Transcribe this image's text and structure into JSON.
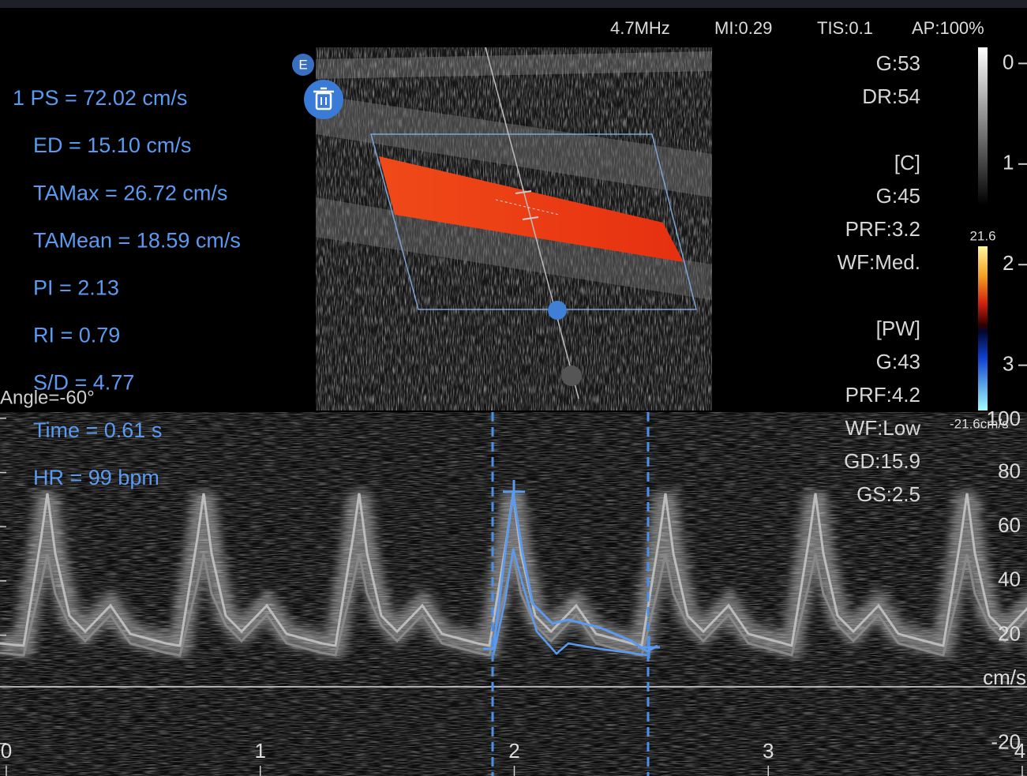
{
  "header": {
    "frequency": "4.7MHz",
    "mi": "MI:0.29",
    "tis": "TIS:0.1",
    "ap": "AP:100%"
  },
  "measurements": [
    "1 PS = 72.02 cm/s",
    "ED = 15.10 cm/s",
    "TAMax = 26.72 cm/s",
    "TAMean = 18.59 cm/s",
    "PI = 2.13",
    "RI = 0.79",
    "S/D = 4.77",
    "Time = 0.61 s",
    "HR = 99 bpm"
  ],
  "angle": "Angle=-60°",
  "image_params": [
    "G:53",
    "DR:54",
    "[C]",
    "G:45",
    "PRF:3.2",
    "WF:Med.",
    "[PW]",
    "G:43",
    "PRF:4.2",
    "WF:Low",
    "GD:15.9",
    "GS:2.5"
  ],
  "buttons": {
    "edit": "E"
  },
  "depth_scale": {
    "ticks": [
      0,
      1,
      2,
      3
    ],
    "lim": [
      -0.16,
      3.45
    ]
  },
  "color_scale": {
    "max": "21.6",
    "min": "-21.6cm/s"
  },
  "spectrum": {
    "unit": "cm/s",
    "yticks": [
      100,
      80,
      60,
      40,
      20,
      -20
    ],
    "ylim": [
      -32,
      102
    ],
    "xticks": [
      0,
      1,
      2,
      3,
      4
    ],
    "xlim": [
      0,
      4
    ]
  }
}
